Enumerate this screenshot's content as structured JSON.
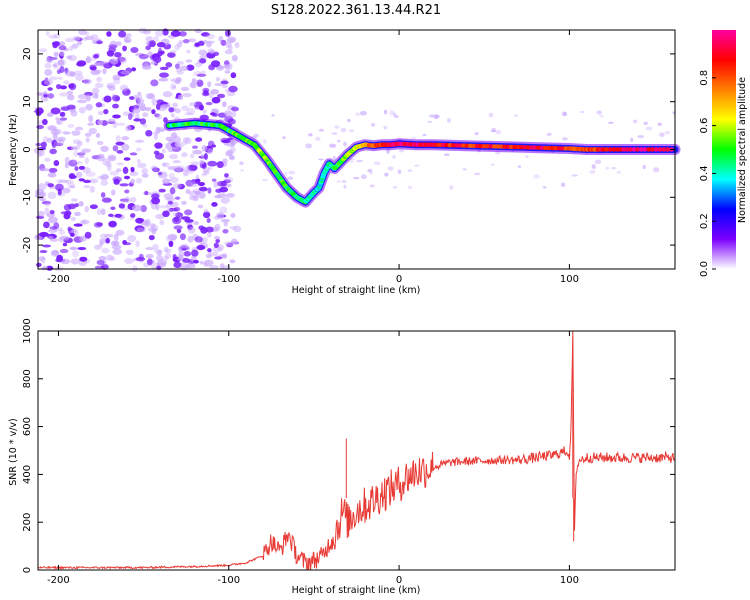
{
  "title": "S128.2022.361.13.44.R21",
  "chart_data": [
    {
      "type": "heatmap",
      "xlabel": "Height of straight line (km)",
      "ylabel": "Frequency (Hz)",
      "xlim": [
        -212,
        162
      ],
      "ylim": [
        -25,
        25
      ],
      "xticks": [
        -200,
        -100,
        0,
        100
      ],
      "yticks": [
        20,
        10,
        0,
        -10,
        -20
      ],
      "colorbar": {
        "label": "Normalized spectral amplitude",
        "range": [
          0,
          1
        ],
        "ticks": [
          "0.0",
          "0.2",
          "0.4",
          "0.6",
          "0.8"
        ],
        "tick_values": [
          0,
          0.2,
          0.4,
          0.6,
          0.8
        ],
        "colormap": [
          "#ffffff",
          "#7b00ff",
          "#0000ff",
          "#00ffff",
          "#00ff00",
          "#ffff00",
          "#ff8000",
          "#ff0000",
          "#ff00a0"
        ]
      },
      "ridge": {
        "x": [
          -135,
          -120,
          -105,
          -95,
          -85,
          -78,
          -72,
          -66,
          -60,
          -55,
          -50,
          -47,
          -44,
          -41,
          -38,
          -34,
          -30,
          -25,
          -20,
          -15,
          -10,
          -5,
          0,
          10,
          20,
          40,
          60,
          80,
          100,
          110,
          120,
          140,
          162
        ],
        "y": [
          5,
          5.5,
          5,
          3,
          1,
          -2,
          -5,
          -8,
          -10,
          -11,
          -9,
          -8,
          -5,
          -3,
          -4,
          -2.5,
          -1,
          0.5,
          1,
          0.8,
          1,
          1,
          1.2,
          1,
          1,
          0.8,
          0.6,
          0.4,
          0.2,
          0,
          0,
          0,
          0
        ],
        "amplitude": [
          0.45,
          0.5,
          0.45,
          0.5,
          0.55,
          0.55,
          0.5,
          0.5,
          0.45,
          0.45,
          0.4,
          0.4,
          0.4,
          0.4,
          0.45,
          0.5,
          0.55,
          0.6,
          0.7,
          0.8,
          0.85,
          0.9,
          0.95,
          0.95,
          0.9,
          0.85,
          0.85,
          0.9,
          0.85,
          0.8,
          0.9,
          0.95,
          0.95
        ]
      }
    },
    {
      "type": "line",
      "xlabel": "Height of straight line (km)",
      "ylabel": "SNR (10 * v/v)",
      "xlim": [
        -212,
        162
      ],
      "ylim": [
        0,
        1000
      ],
      "xticks": [
        -200,
        -100,
        0,
        100
      ],
      "yticks": [
        0,
        200,
        400,
        600,
        800,
        1000
      ],
      "color": "#e83a34",
      "series": [
        {
          "x": [
            -212,
            -180,
            -150,
            -120,
            -100,
            -90,
            -80,
            -75,
            -70,
            -65,
            -60,
            -55,
            -50,
            -45,
            -40,
            -36,
            -33,
            -30,
            -25,
            -20,
            -15,
            -10,
            -5,
            0,
            5,
            10,
            20,
            30,
            40,
            60,
            70,
            80,
            90,
            95,
            98,
            100,
            101,
            102,
            103,
            104,
            106,
            110,
            120,
            140,
            162
          ],
          "y": [
            10,
            10,
            10,
            15,
            20,
            30,
            60,
            120,
            80,
            150,
            60,
            30,
            40,
            60,
            120,
            180,
            250,
            200,
            250,
            270,
            290,
            320,
            340,
            360,
            390,
            410,
            430,
            450,
            455,
            460,
            460,
            470,
            480,
            490,
            500,
            480,
            600,
            980,
            150,
            420,
            460,
            470,
            470,
            470,
            470
          ]
        }
      ],
      "spikes": [
        {
          "x": -31,
          "y": 550
        },
        {
          "x": 102,
          "y": 1000
        },
        {
          "x": 102.5,
          "y": 120
        }
      ]
    }
  ]
}
